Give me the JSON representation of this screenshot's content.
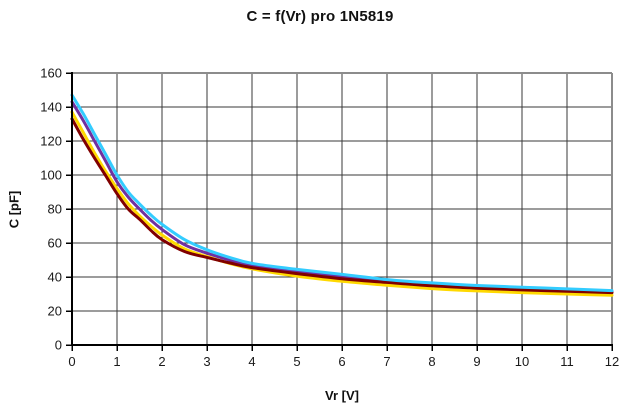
{
  "chart_data": {
    "type": "line",
    "title": "C = f(Vr) pro 1N5819",
    "xlabel": "Vr [V]",
    "ylabel": "C [pF]",
    "xlim": [
      0,
      12
    ],
    "ylim": [
      0,
      160
    ],
    "x_ticks": [
      0,
      1,
      2,
      3,
      4,
      5,
      6,
      7,
      8,
      9,
      10,
      11,
      12
    ],
    "y_ticks": [
      0,
      20,
      40,
      60,
      80,
      100,
      120,
      140,
      160
    ],
    "grid": true,
    "legend_position": "none",
    "x": [
      0,
      0.25,
      0.5,
      0.75,
      1,
      1.25,
      1.5,
      1.75,
      2,
      2.5,
      3,
      3.5,
      4,
      5,
      6,
      7,
      8,
      9,
      10,
      11,
      12
    ],
    "series": [
      {
        "name": "purple",
        "color": "#7030A0",
        "values": [
          143,
          132,
          120,
          108,
          96,
          87,
          80,
          73.5,
          68,
          59,
          54,
          50,
          46.5,
          43,
          40,
          37.5,
          35.5,
          34,
          33,
          32,
          31.2
        ]
      },
      {
        "name": "yellow",
        "color": "#FFD900",
        "values": [
          137,
          125,
          113,
          102,
          92,
          83,
          76,
          70,
          64.7,
          56.5,
          52,
          48,
          44.8,
          40.5,
          37.5,
          35.2,
          33.2,
          31.8,
          30.8,
          30,
          29.3
        ]
      },
      {
        "name": "dark-red",
        "color": "#800000",
        "values": [
          133,
          121,
          110,
          99.5,
          89,
          80,
          74,
          67.5,
          62,
          55,
          51.5,
          48.3,
          45.5,
          42,
          39,
          36.8,
          34.8,
          33.4,
          32.4,
          31.6,
          30.8
        ]
      },
      {
        "name": "cyan",
        "color": "#33CCFF",
        "values": [
          147,
          136,
          124,
          112,
          100,
          90,
          83,
          76.5,
          71,
          62,
          56,
          51.5,
          48,
          44.5,
          41.5,
          38.5,
          36.5,
          35,
          34,
          33,
          32
        ]
      }
    ],
    "colors": {
      "background": "#FFFFFF",
      "plot_background": "#FFFFFF",
      "gridline": "#3A3A3A",
      "plot_border": "#8C8C8C",
      "axis": "#000000",
      "text": "#111111"
    }
  }
}
